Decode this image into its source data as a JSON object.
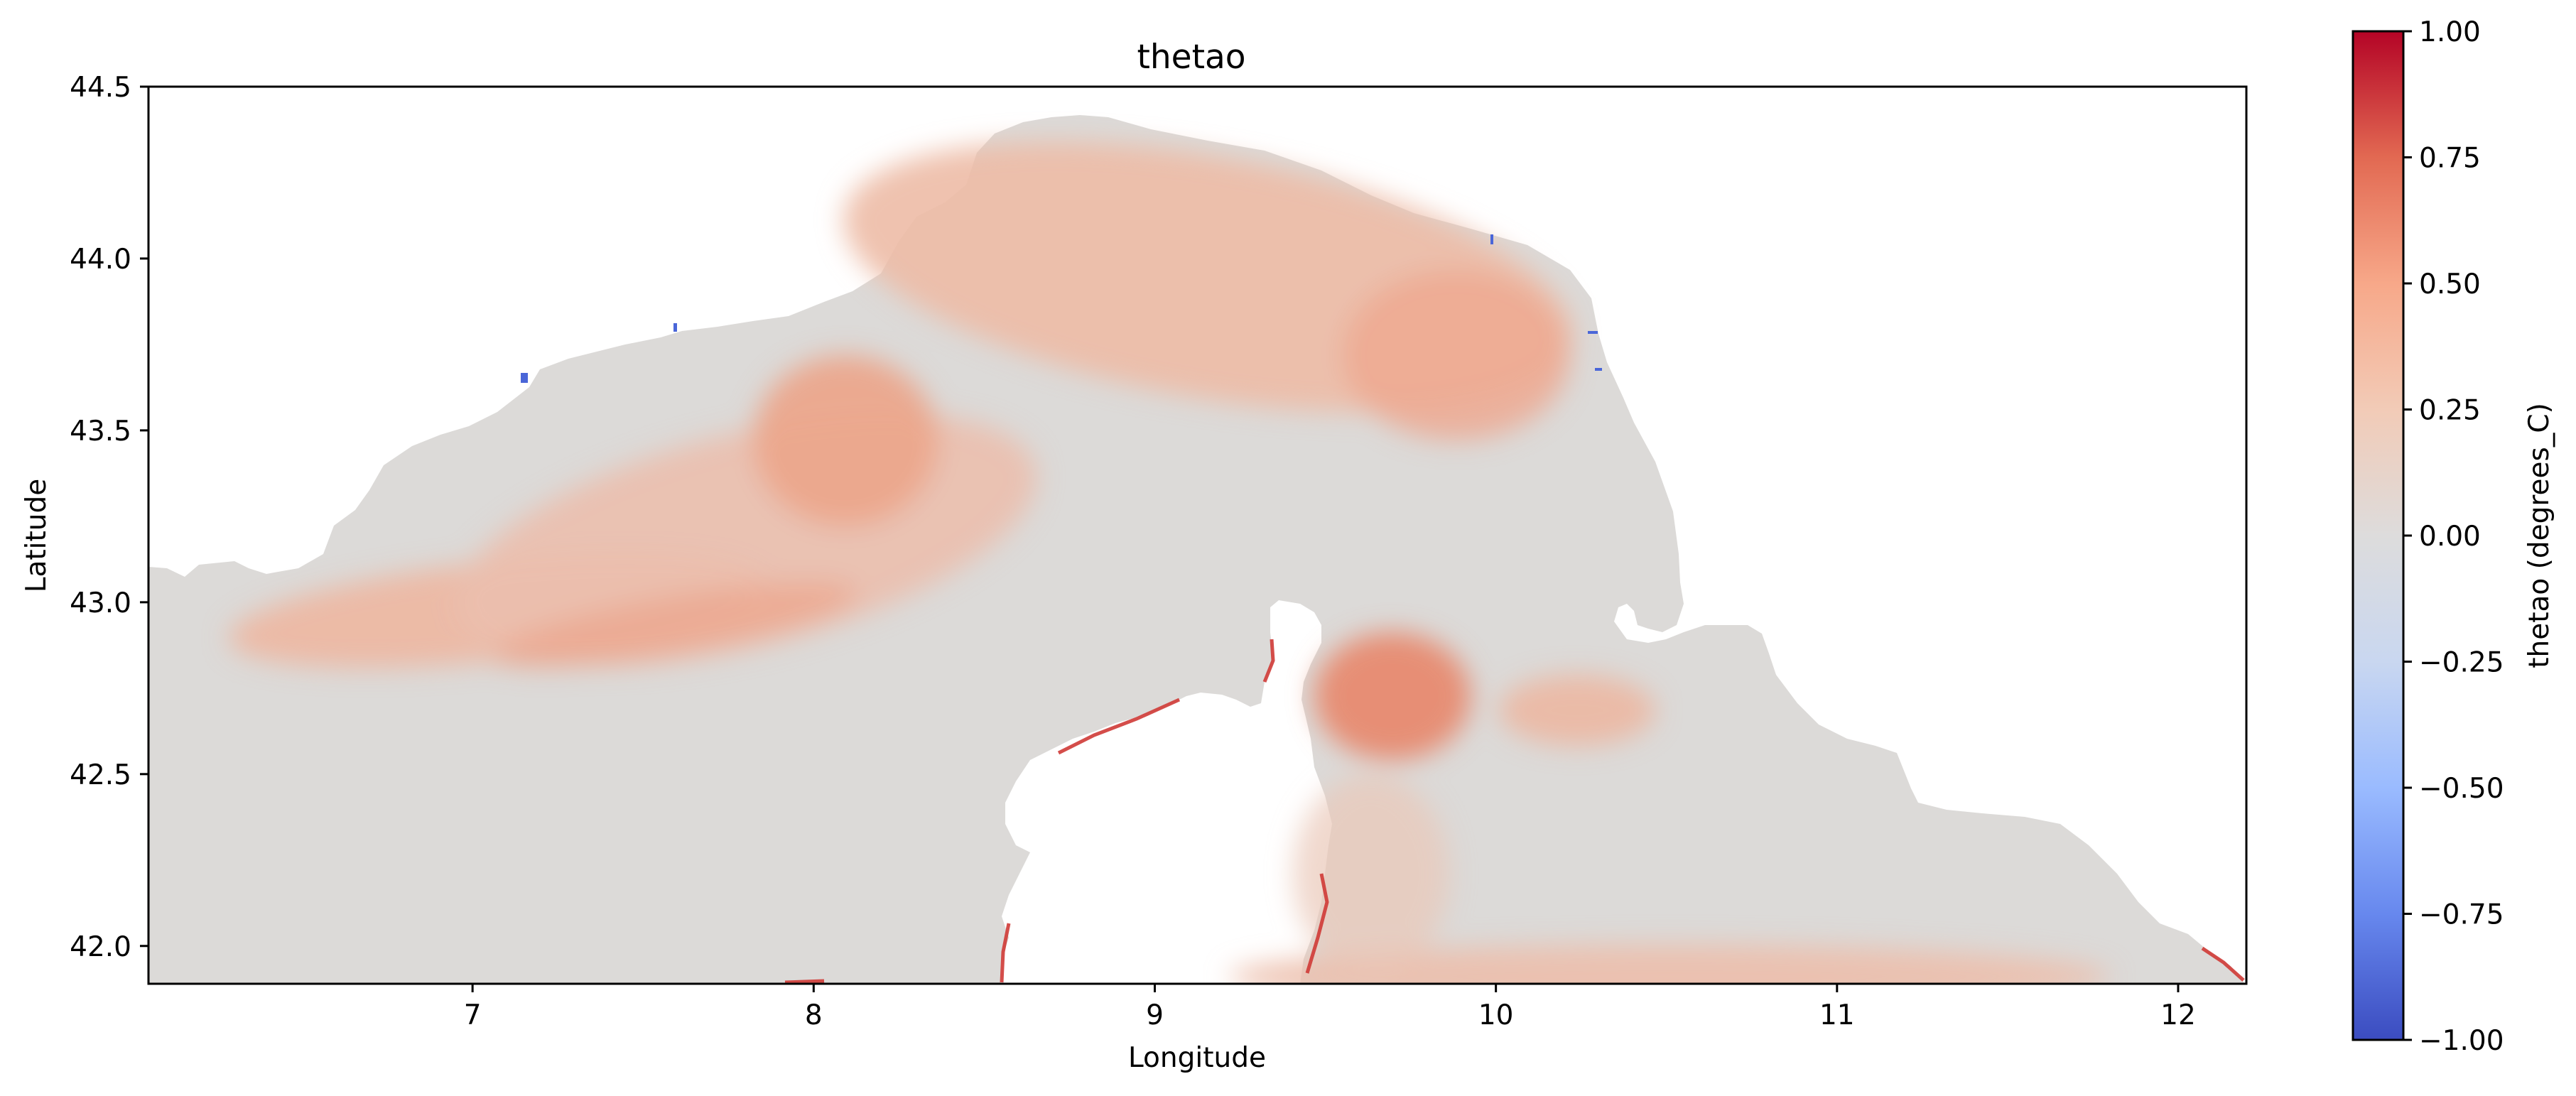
{
  "chart_data": {
    "type": "heatmap",
    "title": "thetao",
    "xlabel": "Longitude",
    "ylabel": "Latitude",
    "xlim": [
      6.05,
      12.2
    ],
    "ylim": [
      41.89,
      44.5
    ],
    "xticks": [
      7,
      8,
      9,
      10,
      11,
      12
    ],
    "xtick_labels": [
      "7",
      "8",
      "9",
      "10",
      "11",
      "12"
    ],
    "yticks": [
      42.0,
      42.5,
      43.0,
      43.5,
      44.0,
      44.5
    ],
    "ytick_labels": [
      "42.0",
      "42.5",
      "43.0",
      "43.5",
      "44.0",
      "44.5"
    ],
    "grid": false,
    "colorbar": {
      "label": "thetao (degrees_C)",
      "colormap": "coolwarm",
      "range": [
        -1.0,
        1.0
      ],
      "ticks": [
        1.0,
        0.75,
        0.5,
        0.25,
        0.0,
        -0.25,
        -0.5,
        -0.75,
        -1.0
      ],
      "tick_labels": [
        "1.00",
        "0.75",
        "0.50",
        "0.25",
        "0.00",
        "−0.25",
        "−0.50",
        "−0.75",
        "−1.00"
      ],
      "colors": [
        "#3b4cc0",
        "#6788ee",
        "#9abbff",
        "#c9d7f0",
        "#dddcdc",
        "#f2cbb7",
        "#f7a889",
        "#e26952",
        "#b40426"
      ]
    },
    "field_colors": {
      "neutral": "#dcdad8",
      "warm_light": "#ecc6b5",
      "warm_medium": "#eea88e",
      "warm_strong": "#e07a62",
      "coast_hot": "#c0262f",
      "land": "#ffffff"
    },
    "features": [
      {
        "name": "warm band (Ligurian coast arc)",
        "lon": [
          6.5,
          9.0
        ],
        "lat": [
          42.8,
          43.6
        ],
        "value": 0.35
      },
      {
        "name": "warm eddy",
        "lon": [
          8.1,
          8.3
        ],
        "lat": [
          43.45,
          43.6
        ],
        "value": 0.5
      },
      {
        "name": "warm region north",
        "lon": [
          8.4,
          10.3
        ],
        "lat": [
          43.6,
          44.2
        ],
        "value": 0.3
      },
      {
        "name": "warm eddy east of Corsica",
        "lon": [
          9.6,
          9.9
        ],
        "lat": [
          42.65,
          42.85
        ],
        "value": 0.55
      },
      {
        "name": "neutral open sea",
        "lon": [
          6.05,
          9.0
        ],
        "lat": [
          41.89,
          42.8
        ],
        "value": 0.0
      },
      {
        "name": "warm southern strip",
        "lon": [
          9.4,
          12.0
        ],
        "lat": [
          41.89,
          42.1
        ],
        "value": 0.3
      },
      {
        "name": "cold coastal specks",
        "lon": [
          7.2,
          10.3
        ],
        "lat": [
          43.6,
          44.05
        ],
        "value": -0.75
      }
    ]
  }
}
